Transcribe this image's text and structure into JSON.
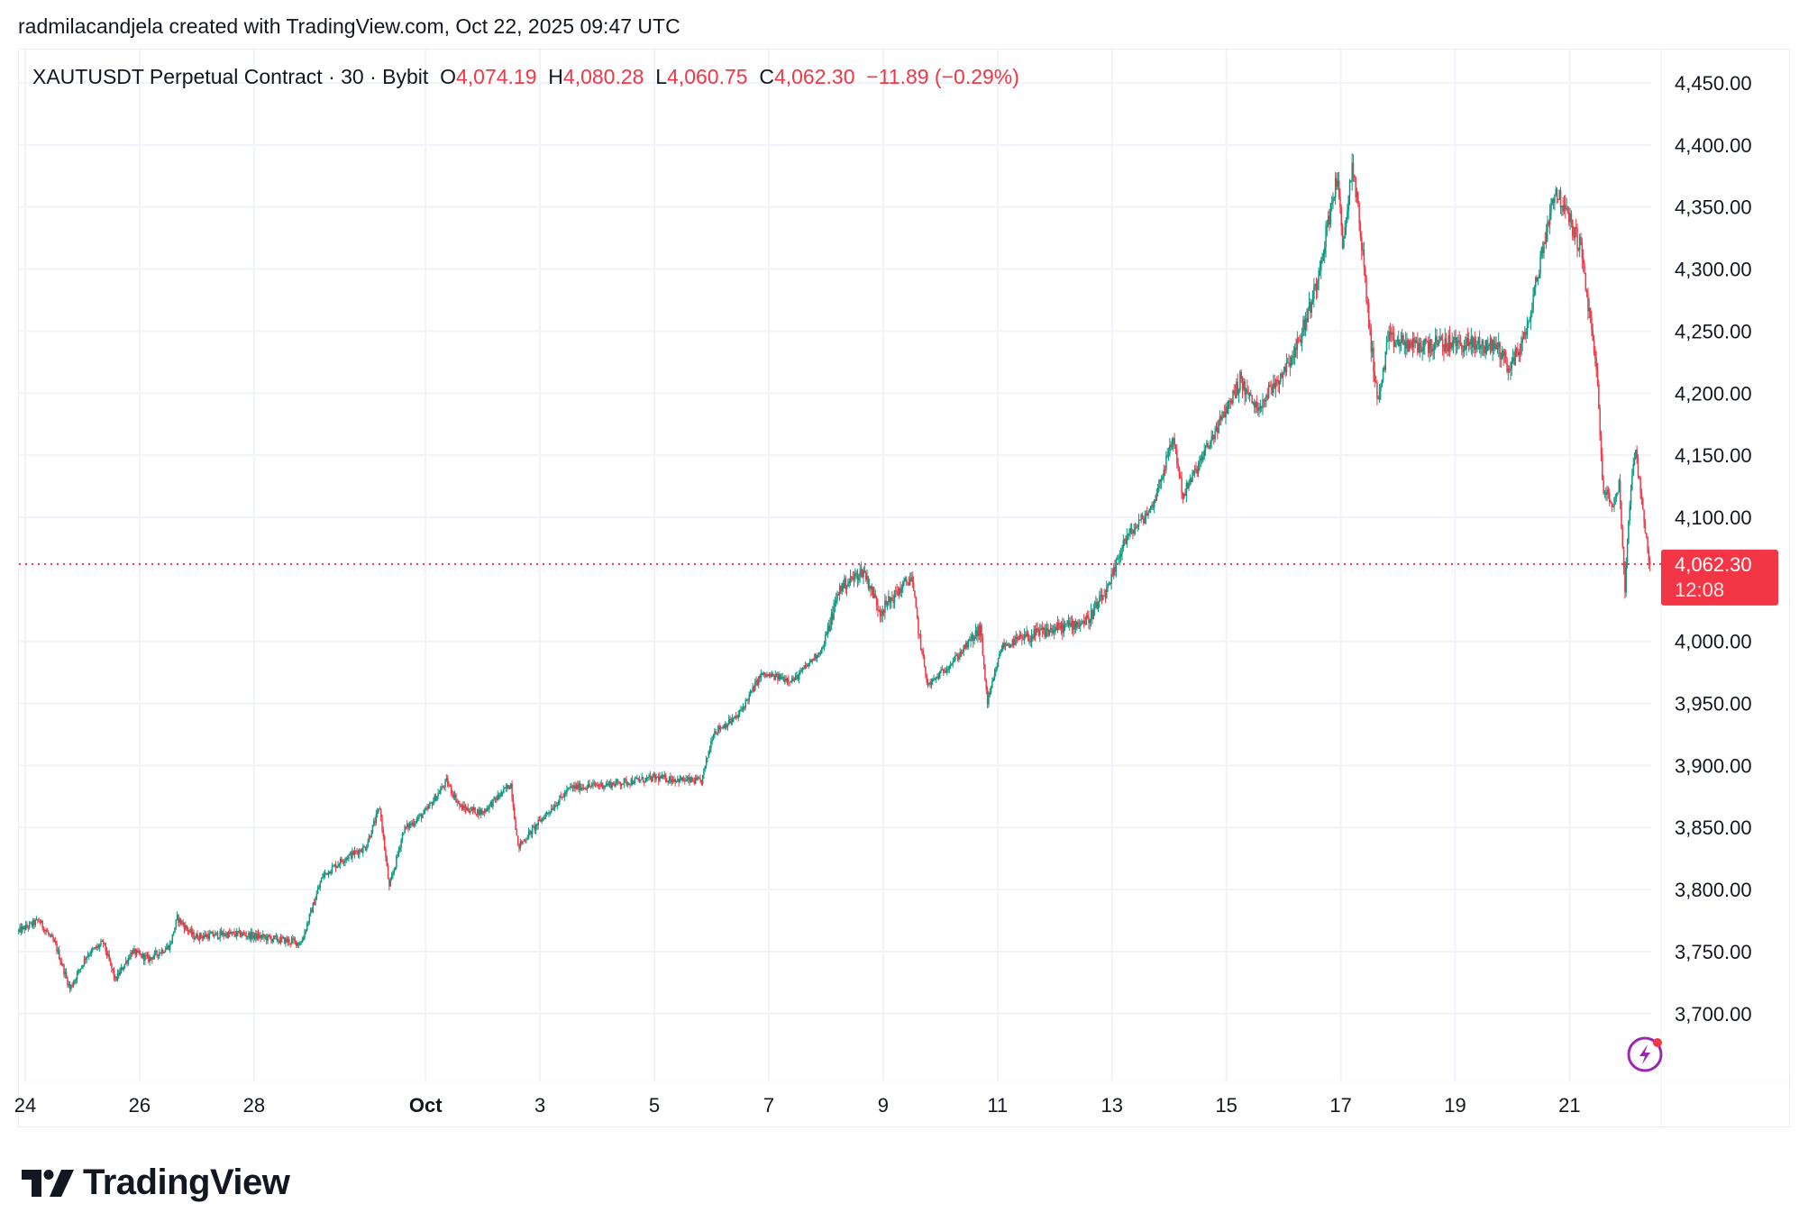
{
  "credit": "radmilacandjela created with TradingView.com, Oct 22, 2025 09:47 UTC",
  "legend": {
    "symbol": "XAUTUSDT Perpetual Contract · 30 · Bybit",
    "open_label": "O",
    "open": "4,074.19",
    "high_label": "H",
    "high": "4,080.28",
    "low_label": "L",
    "low": "4,060.75",
    "close_label": "C",
    "close": "4,062.30",
    "change": "−11.89 (−0.29%)"
  },
  "last_price": {
    "value": "4,062.30",
    "countdown": "12:08",
    "color": "#f23645"
  },
  "logo": {
    "text": "TradingView"
  },
  "colors": {
    "up": "#089981",
    "down": "#f23645",
    "grid": "#f0f3fa",
    "alert_icon": "#9c27b0"
  },
  "chart_data": {
    "type": "candlestick",
    "interval": "30",
    "ylim": [
      3650,
      4475
    ],
    "grid": true,
    "last_close": 4062.3,
    "y_ticks": [
      "4,450.00",
      "4,400.00",
      "4,350.00",
      "4,300.00",
      "4,250.00",
      "4,200.00",
      "4,150.00",
      "4,100.00",
      "4,000.00",
      "3,950.00",
      "3,900.00",
      "3,850.00",
      "3,800.00",
      "3,750.00",
      "3,700.00"
    ],
    "y_tick_values": [
      4450,
      4400,
      4350,
      4300,
      4250,
      4200,
      4150,
      4100,
      4000,
      3950,
      3900,
      3850,
      3800,
      3750,
      3700
    ],
    "x_ticks": [
      {
        "label": "24",
        "date": "Sep 24 00:00"
      },
      {
        "label": "26",
        "date": "Sep 26 00:00"
      },
      {
        "label": "28",
        "date": "Sep 28 00:00"
      },
      {
        "label": "Oct",
        "date": "Oct 1 00:00"
      },
      {
        "label": "3",
        "date": "Oct 3 00:00"
      },
      {
        "label": "5",
        "date": "Oct 5 00:00"
      },
      {
        "label": "7",
        "date": "Oct 7 00:00"
      },
      {
        "label": "9",
        "date": "Oct 9 00:00"
      },
      {
        "label": "11",
        "date": "Oct 11 00:00"
      },
      {
        "label": "13",
        "date": "Oct 13 00:00"
      },
      {
        "label": "15",
        "date": "Oct 15 00:00"
      },
      {
        "label": "17",
        "date": "Oct 17 00:00"
      },
      {
        "label": "19",
        "date": "Oct 19 00:00"
      },
      {
        "label": "21",
        "date": "Oct 21 00:00"
      }
    ],
    "price_path": [
      [
        "Sep 23 21:00",
        3766
      ],
      [
        "Sep 24 06:00",
        3775
      ],
      [
        "Sep 24 13:00",
        3755
      ],
      [
        "Sep 24 19:00",
        3720
      ],
      [
        "Sep 25 02:00",
        3747
      ],
      [
        "Sep 25 09:00",
        3757
      ],
      [
        "Sep 25 14:00",
        3727
      ],
      [
        "Sep 25 21:00",
        3750
      ],
      [
        "Sep 26 04:00",
        3744
      ],
      [
        "Sep 26 13:00",
        3755
      ],
      [
        "Sep 26 16:00",
        3777
      ],
      [
        "Sep 26 23:00",
        3762
      ],
      [
        "Sep 27 12:00",
        3764
      ],
      [
        "Sep 27 19:00",
        3764
      ],
      [
        "Sep 28 20:00",
        3757
      ],
      [
        "Sep 29 05:00",
        3811
      ],
      [
        "Sep 29 14:00",
        3825
      ],
      [
        "Sep 29 23:00",
        3834
      ],
      [
        "Sep 30 05:00",
        3866
      ],
      [
        "Sep 30 09:00",
        3801
      ],
      [
        "Sep 30 15:00",
        3848
      ],
      [
        "Oct 1 00:00",
        3862
      ],
      [
        "Oct 1 09:00",
        3887
      ],
      [
        "Oct 1 15:00",
        3866
      ],
      [
        "Oct 2 00:00",
        3862
      ],
      [
        "Oct 2 12:00",
        3885
      ],
      [
        "Oct 2 15:00",
        3834
      ],
      [
        "Oct 3 01:00",
        3857
      ],
      [
        "Oct 3 13:00",
        3882
      ],
      [
        "Oct 4 06:00",
        3885
      ],
      [
        "Oct 5 01:00",
        3890
      ],
      [
        "Oct 5 20:00",
        3887
      ],
      [
        "Oct 6 01:00",
        3927
      ],
      [
        "Oct 6 11:00",
        3939
      ],
      [
        "Oct 6 21:00",
        3973
      ],
      [
        "Oct 7 11:00",
        3969
      ],
      [
        "Oct 7 23:00",
        3995
      ],
      [
        "Oct 8 06:00",
        4043
      ],
      [
        "Oct 8 16:00",
        4057
      ],
      [
        "Oct 8 23:00",
        4024
      ],
      [
        "Oct 9 12:00",
        4052
      ],
      [
        "Oct 9 16:00",
        3996
      ],
      [
        "Oct 9 19:00",
        3964
      ],
      [
        "Oct 10 07:00",
        3987
      ],
      [
        "Oct 10 17:00",
        4010
      ],
      [
        "Oct 10 20:00",
        3950
      ],
      [
        "Oct 11 02:00",
        3996
      ],
      [
        "Oct 11 17:00",
        4006
      ],
      [
        "Oct 12 14:00",
        4017
      ],
      [
        "Oct 12 23:00",
        4043
      ],
      [
        "Oct 13 05:00",
        4080
      ],
      [
        "Oct 13 17:00",
        4108
      ],
      [
        "Oct 14 02:00",
        4164
      ],
      [
        "Oct 14 06:00",
        4117
      ],
      [
        "Oct 14 17:00",
        4159
      ],
      [
        "Oct 15 06:00",
        4210
      ],
      [
        "Oct 15 13:00",
        4187
      ],
      [
        "Oct 15 23:00",
        4215
      ],
      [
        "Oct 16 06:00",
        4238
      ],
      [
        "Oct 16 13:00",
        4280
      ],
      [
        "Oct 16 23:00",
        4377
      ],
      [
        "Oct 17 01:00",
        4312
      ],
      [
        "Oct 17 05:00",
        4386
      ],
      [
        "Oct 17 08:00",
        4340
      ],
      [
        "Oct 17 13:00",
        4238
      ],
      [
        "Oct 17 16:00",
        4192
      ],
      [
        "Oct 17 20:00",
        4243
      ],
      [
        "Oct 18 08:00",
        4238
      ],
      [
        "Oct 18 23:00",
        4240
      ],
      [
        "Oct 19 18:00",
        4238
      ],
      [
        "Oct 19 23:00",
        4220
      ],
      [
        "Oct 20 06:00",
        4247
      ],
      [
        "Oct 20 13:00",
        4317
      ],
      [
        "Oct 20 18:00",
        4364
      ],
      [
        "Oct 20 23:00",
        4345
      ],
      [
        "Oct 21 05:00",
        4317
      ],
      [
        "Oct 21 09:00",
        4256
      ],
      [
        "Oct 21 12:00",
        4210
      ],
      [
        "Oct 21 14:00",
        4127
      ],
      [
        "Oct 21 18:00",
        4108
      ],
      [
        "Oct 21 21:00",
        4127
      ],
      [
        "Oct 21 23:30",
        4043
      ],
      [
        "Oct 22 02:00",
        4127
      ],
      [
        "Oct 22 04:00",
        4150
      ],
      [
        "Oct 22 07:00",
        4108
      ],
      [
        "Oct 22 09:30",
        4062.3
      ]
    ]
  }
}
